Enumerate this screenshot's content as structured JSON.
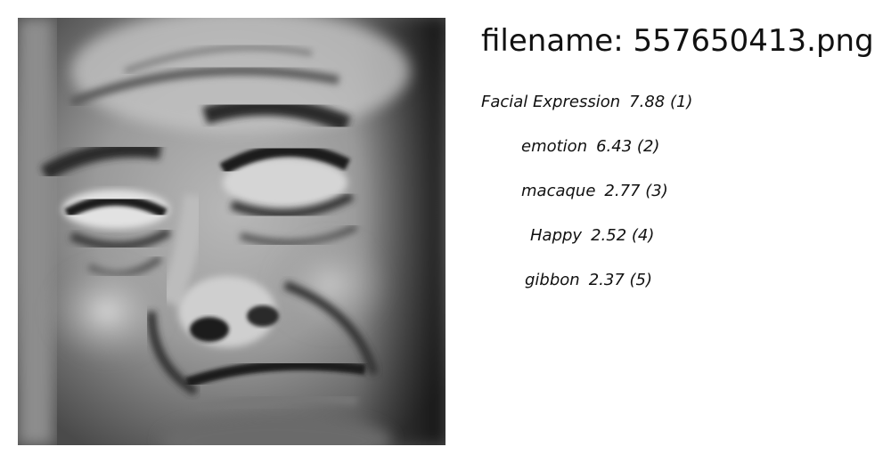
{
  "filename_prefix": "filename: ",
  "filename": "557650413.png",
  "labels": [
    {
      "name": "Facial Expression",
      "score": "7.88",
      "rank": "(1)"
    },
    {
      "name": "emotion",
      "score": "6.43",
      "rank": "(2)"
    },
    {
      "name": "macaque",
      "score": "2.77",
      "rank": "(3)"
    },
    {
      "name": "Happy",
      "score": "2.52",
      "rank": "(4)"
    },
    {
      "name": "gibbon",
      "score": "2.37",
      "rank": "(5)"
    }
  ],
  "image": {
    "description_icon": "grayscale-face-photo"
  }
}
